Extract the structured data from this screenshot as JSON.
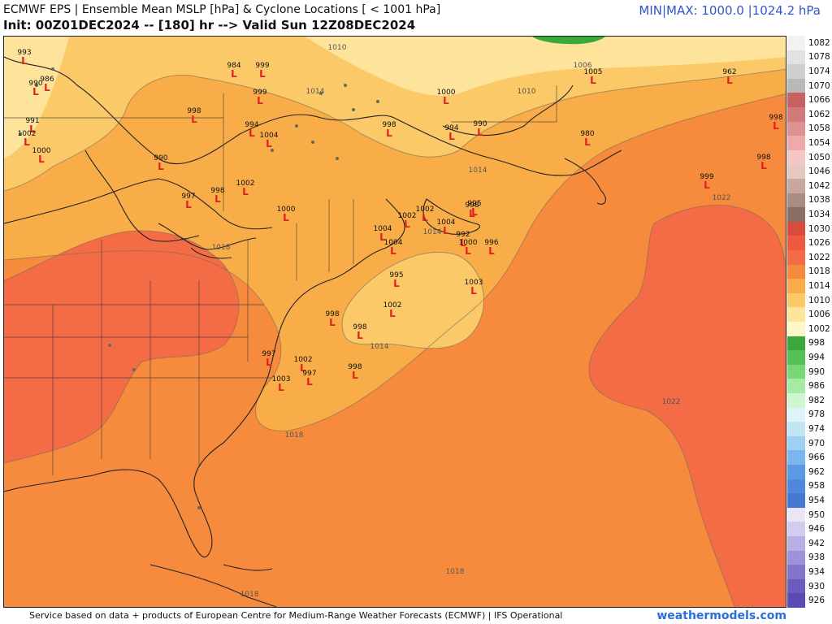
{
  "header": {
    "title": "ECMWF EPS | Ensemble Mean MSLP [hPa] & Cyclone Locations [ < 1001 hPa]",
    "subtitle": "Init: 00Z01DEC2024 -- [180] hr --> Valid Sun 12Z08DEC2024",
    "minmax": "MIN|MAX: 1000.0 |1024.2 hPa"
  },
  "footer": {
    "credit": "Service based on data + products of European Centre for Medium-Range Weather Forecasts (ECMWF) | IFS Operational",
    "brand": "weathermodels.com"
  },
  "legend": [
    {
      "label": "1082",
      "color": "#f2f2f2"
    },
    {
      "label": "1078",
      "color": "#e2e2e2"
    },
    {
      "label": "1074",
      "color": "#cfcfcf"
    },
    {
      "label": "1070",
      "color": "#b9b9b9"
    },
    {
      "label": "1066",
      "color": "#c86262"
    },
    {
      "label": "1062",
      "color": "#d27a7a"
    },
    {
      "label": "1058",
      "color": "#e09090"
    },
    {
      "label": "1054",
      "color": "#eeaaaa"
    },
    {
      "label": "1050",
      "color": "#f5c6c6"
    },
    {
      "label": "1046",
      "color": "#e6c8c0"
    },
    {
      "label": "1042",
      "color": "#c8a89e"
    },
    {
      "label": "1038",
      "color": "#a98c82"
    },
    {
      "label": "1034",
      "color": "#8a6e64"
    },
    {
      "label": "1030",
      "color": "#d84c3c"
    },
    {
      "label": "1026",
      "color": "#ef5a3e"
    },
    {
      "label": "1022",
      "color": "#f46c45"
    },
    {
      "label": "1018",
      "color": "#f68b3e"
    },
    {
      "label": "1014",
      "color": "#f9ad48"
    },
    {
      "label": "1010",
      "color": "#fbc968"
    },
    {
      "label": "1006",
      "color": "#fde49a"
    },
    {
      "label": "1002",
      "color": "#fff6c8"
    },
    {
      "label": "998",
      "color": "#3aa83a"
    },
    {
      "label": "994",
      "color": "#55c255"
    },
    {
      "label": "990",
      "color": "#78d878"
    },
    {
      "label": "986",
      "color": "#a6eaa6"
    },
    {
      "label": "982",
      "color": "#cff6cf"
    },
    {
      "label": "978",
      "color": "#dff3fb"
    },
    {
      "label": "974",
      "color": "#c2e6f6"
    },
    {
      "label": "970",
      "color": "#9fd2f2"
    },
    {
      "label": "966",
      "color": "#7bb6ee"
    },
    {
      "label": "962",
      "color": "#5b99e4"
    },
    {
      "label": "958",
      "color": "#4f88dc"
    },
    {
      "label": "954",
      "color": "#4477d2"
    },
    {
      "label": "950",
      "color": "#eae6f6"
    },
    {
      "label": "946",
      "color": "#d2ccee"
    },
    {
      "label": "942",
      "color": "#b8b0e4"
    },
    {
      "label": "938",
      "color": "#9e92da"
    },
    {
      "label": "934",
      "color": "#8474cc"
    },
    {
      "label": "930",
      "color": "#6c5cc0"
    },
    {
      "label": "926",
      "color": "#5a4ab4"
    }
  ],
  "isobar_labels": [
    "1010",
    "1006",
    "1014",
    "1010",
    "1014",
    "1014",
    "1018",
    "1022",
    "1014",
    "1018",
    "1022",
    "1018",
    "1018"
  ],
  "cyclones": [
    {
      "value": "993"
    },
    {
      "value": "990"
    },
    {
      "value": "986"
    },
    {
      "value": "991"
    },
    {
      "value": "1002"
    },
    {
      "value": "1000"
    },
    {
      "value": "984"
    },
    {
      "value": "999"
    },
    {
      "value": "999"
    },
    {
      "value": "998"
    },
    {
      "value": "994"
    },
    {
      "value": "1004"
    },
    {
      "value": "990"
    },
    {
      "value": "997"
    },
    {
      "value": "998"
    },
    {
      "value": "1002"
    },
    {
      "value": "1000"
    },
    {
      "value": "998"
    },
    {
      "value": "1000"
    },
    {
      "value": "994"
    },
    {
      "value": "990"
    },
    {
      "value": "1005"
    },
    {
      "value": "962"
    },
    {
      "value": "980"
    },
    {
      "value": "998"
    },
    {
      "value": "998"
    },
    {
      "value": "999"
    },
    {
      "value": "1004"
    },
    {
      "value": "1004"
    },
    {
      "value": "1002"
    },
    {
      "value": "1002"
    },
    {
      "value": "1004"
    },
    {
      "value": "995"
    },
    {
      "value": "998"
    },
    {
      "value": "992"
    },
    {
      "value": "1000"
    },
    {
      "value": "996"
    },
    {
      "value": "995"
    },
    {
      "value": "1003"
    },
    {
      "value": "1002"
    },
    {
      "value": "998"
    },
    {
      "value": "998"
    },
    {
      "value": "1002"
    },
    {
      "value": "997"
    },
    {
      "value": "1003"
    },
    {
      "value": "998"
    },
    {
      "value": "997"
    }
  ],
  "colors": {
    "p1006": "#fde49a",
    "p1010": "#fbc968",
    "p1014": "#f9ad48",
    "p1018": "#f68b3e",
    "p1022": "#f46c45",
    "p1002": "#fff6c8",
    "green": "#3aa83a",
    "cyclone": "#e02020",
    "coast": "#222222",
    "brand": "#2a6fd8"
  }
}
